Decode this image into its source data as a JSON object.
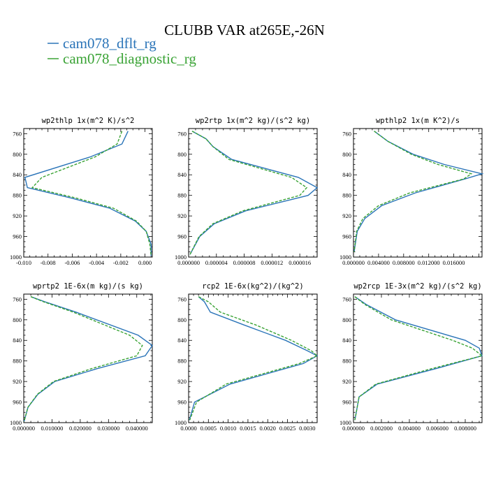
{
  "figure": {
    "title": "CLUBB VAR at265E,-26N",
    "legend": [
      {
        "label": "cam078_dflt_rg",
        "color": "#2a74b8",
        "dash": "none"
      },
      {
        "label": "cam078_diagnostic_rg",
        "color": "#3aa335",
        "dash": "4,2"
      }
    ]
  },
  "chart_data": [
    {
      "type": "line",
      "title": "wp2thlp  1x(m^2 K)/s^2",
      "ylim": [
        1000,
        750
      ],
      "yticks": [
        760,
        800,
        840,
        880,
        920,
        960,
        1000
      ],
      "xlim": [
        -0.01,
        0.0006
      ],
      "xticks": [
        -0.01,
        -0.008,
        -0.006,
        -0.004,
        -0.002,
        0.0
      ],
      "xtick_labels": [
        "-0.010",
        "-0.008",
        "-0.006",
        "-0.004",
        "-0.002",
        "0.000"
      ],
      "grid": false,
      "series": [
        {
          "name": "cam078_dflt_rg",
          "x": [
            -0.0014,
            -0.0019,
            -0.0045,
            -0.0099,
            -0.0097,
            -0.0061,
            -0.0029,
            -0.0008,
            0.0001,
            0.0005,
            0.0005
          ],
          "y": [
            755,
            780,
            805,
            845,
            865,
            885,
            905,
            930,
            950,
            975,
            998
          ]
        },
        {
          "name": "cam078_diagnostic_rg",
          "x": [
            -0.0019,
            -0.0023,
            -0.0041,
            -0.0085,
            -0.0093,
            -0.0057,
            -0.0026,
            -0.0007,
            0.0001,
            0.0004,
            0.0005
          ],
          "y": [
            755,
            780,
            805,
            845,
            865,
            885,
            905,
            930,
            950,
            975,
            998
          ]
        }
      ]
    },
    {
      "type": "line",
      "title": "wp2rtp  1x(m^2 kg)/(s^2 kg)",
      "ylim": [
        1000,
        750
      ],
      "yticks": [
        760,
        800,
        840,
        880,
        920,
        960,
        1000
      ],
      "xlim": [
        0,
        1.85e-05
      ],
      "xticks": [
        0,
        4e-06,
        8e-06,
        1.2e-05,
        1.6e-05
      ],
      "xtick_labels": [
        "0.000000",
        "0.000004",
        "0.000008",
        "0.000012",
        "0.000016"
      ],
      "grid": false,
      "series": [
        {
          "name": "cam078_dflt_rg",
          "x": [
            5e-07,
            2.5e-06,
            3.5e-06,
            6.2e-06,
            1.58e-05,
            1.85e-05,
            1.72e-05,
            8.2e-06,
            3.7e-06,
            1.6e-06,
            2e-07
          ],
          "y": [
            755,
            770,
            785,
            810,
            845,
            865,
            880,
            910,
            935,
            960,
            995
          ]
        },
        {
          "name": "cam078_diagnostic_rg",
          "x": [
            5e-07,
            2.5e-06,
            3.5e-06,
            5.8e-06,
            1.48e-05,
            1.7e-05,
            1.6e-05,
            7.8e-06,
            3.5e-06,
            1.5e-06,
            2e-07
          ],
          "y": [
            755,
            770,
            785,
            810,
            845,
            865,
            880,
            910,
            935,
            960,
            995
          ]
        }
      ]
    },
    {
      "type": "line",
      "title": "wpthlp2  1x(m K^2)/s",
      "ylim": [
        1000,
        750
      ],
      "yticks": [
        760,
        800,
        840,
        880,
        920,
        960,
        1000
      ],
      "xlim": [
        0,
        0.0205
      ],
      "xticks": [
        0,
        0.004,
        0.008,
        0.012,
        0.016
      ],
      "xtick_labels": [
        "0.000000",
        "0.004000",
        "0.008000",
        "0.012000",
        "0.016000"
      ],
      "grid": false,
      "series": [
        {
          "name": "cam078_dflt_rg",
          "x": [
            0.0033,
            0.0055,
            0.0095,
            0.0145,
            0.0205,
            0.0178,
            0.0099,
            0.0045,
            0.0018,
            0.0006,
            0.0001
          ],
          "y": [
            755,
            775,
            800,
            820,
            838,
            848,
            875,
            900,
            925,
            950,
            990
          ]
        },
        {
          "name": "cam078_diagnostic_rg",
          "x": [
            0.0033,
            0.0055,
            0.0092,
            0.0135,
            0.0188,
            0.0176,
            0.009,
            0.004,
            0.0015,
            0.0005,
            0.0001
          ],
          "y": [
            755,
            775,
            800,
            820,
            838,
            848,
            875,
            900,
            925,
            950,
            990
          ]
        }
      ]
    },
    {
      "type": "line",
      "title": "wprtp2  1E-6x(m kg)/(s kg)",
      "ylim": [
        1000,
        750
      ],
      "yticks": [
        760,
        800,
        840,
        880,
        920,
        960,
        1000
      ],
      "xlim": [
        0,
        0.0455
      ],
      "xticks": [
        0,
        0.01,
        0.02,
        0.03,
        0.04
      ],
      "xtick_labels": [
        "0.000000",
        "0.010000",
        "0.020000",
        "0.030000",
        "0.040000"
      ],
      "grid": false,
      "series": [
        {
          "name": "cam078_dflt_rg",
          "x": [
            0.0025,
            0.0075,
            0.0185,
            0.0405,
            0.0455,
            0.043,
            0.026,
            0.011,
            0.005,
            0.0015,
            0.0001
          ],
          "y": [
            755,
            765,
            785,
            830,
            850,
            870,
            895,
            920,
            945,
            970,
            998
          ]
        },
        {
          "name": "cam078_diagnostic_rg",
          "x": [
            0.0025,
            0.007,
            0.0175,
            0.0375,
            0.042,
            0.04,
            0.024,
            0.0105,
            0.0048,
            0.0015,
            0.0001
          ],
          "y": [
            755,
            765,
            785,
            830,
            850,
            870,
            895,
            920,
            945,
            970,
            998
          ]
        }
      ]
    },
    {
      "type": "line",
      "title": "rcp2  1E-6x(kg^2)/(kg^2)",
      "ylim": [
        1000,
        750
      ],
      "yticks": [
        760,
        800,
        840,
        880,
        920,
        960,
        1000
      ],
      "xlim": [
        0,
        0.00325
      ],
      "xticks": [
        0,
        0.0005,
        0.001,
        0.0015,
        0.002,
        0.0025,
        0.003
      ],
      "xtick_labels": [
        "0.0000",
        "0.0005",
        "0.0010",
        "0.0015",
        "0.0020",
        "0.0025",
        "0.0030"
      ],
      "grid": false,
      "series": [
        {
          "name": "cam078_dflt_rg",
          "x": [
            0.00025,
            0.0004,
            0.00055,
            0.0014,
            0.00245,
            0.003,
            0.00325,
            0.0029,
            0.00105,
            0.00015,
            2e-05
          ],
          "y": [
            755,
            765,
            785,
            810,
            840,
            860,
            870,
            885,
            925,
            960,
            995
          ]
        },
        {
          "name": "cam078_diagnostic_rg",
          "x": [
            0.00025,
            0.0005,
            0.0008,
            0.0017,
            0.0026,
            0.0031,
            0.00325,
            0.0028,
            0.00095,
            0.0002,
            3e-05
          ],
          "y": [
            755,
            765,
            785,
            810,
            840,
            860,
            870,
            885,
            925,
            960,
            995
          ]
        }
      ]
    },
    {
      "type": "line",
      "title": "wp2rcp  1E-3x(m^2 kg)/(s^2 kg)",
      "ylim": [
        1000,
        750
      ],
      "yticks": [
        760,
        800,
        840,
        880,
        920,
        960,
        1000
      ],
      "xlim": [
        0,
        0.0092
      ],
      "xticks": [
        0,
        0.002,
        0.004,
        0.006,
        0.008
      ],
      "xtick_labels": [
        "0.000000",
        "0.002000",
        "0.004000",
        "0.006000",
        "0.008000"
      ],
      "grid": false,
      "series": [
        {
          "name": "cam078_dflt_rg",
          "x": [
            0.0001,
            0.0009,
            0.003,
            0.008,
            0.009,
            0.0092,
            0.0059,
            0.0017,
            0.0004,
            0.0001
          ],
          "y": [
            755,
            770,
            800,
            840,
            855,
            870,
            895,
            925,
            950,
            995
          ]
        },
        {
          "name": "cam078_diagnostic_rg",
          "x": [
            0.0001,
            0.0008,
            0.0027,
            0.0071,
            0.0085,
            0.0092,
            0.0056,
            0.0016,
            0.0004,
            0.0001
          ],
          "y": [
            755,
            770,
            800,
            840,
            855,
            870,
            895,
            925,
            950,
            995
          ]
        }
      ]
    }
  ]
}
